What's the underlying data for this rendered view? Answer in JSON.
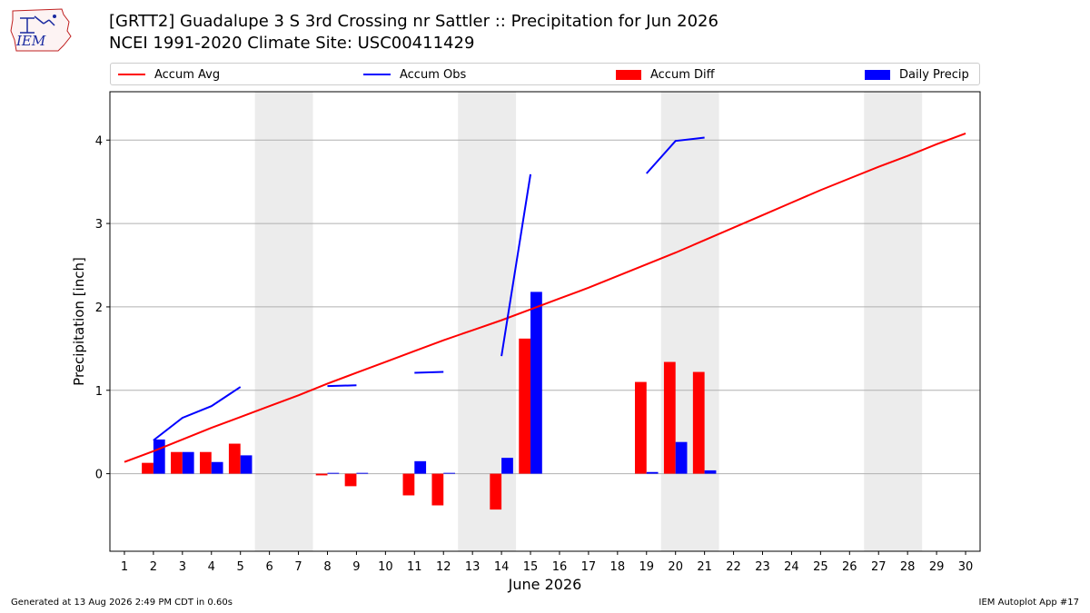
{
  "header": {
    "title_line1": "[GRTT2] Guadalupe 3 S 3rd Crossing nr Sattler :: Precipitation for Jun 2026",
    "title_line2": "NCEI 1991-2020 Climate Site: USC00411429"
  },
  "logo": {
    "text": "IEM",
    "icon": "iem-iowa-logo"
  },
  "footer": {
    "generated": "Generated at 13 Aug 2026 2:49 PM CDT in 0.60s",
    "app": "IEM Autoplot App #17"
  },
  "colors": {
    "accum_avg": "#ff0000",
    "accum_obs": "#0000ff",
    "accum_diff": "#ff0000",
    "daily_precip": "#0000ff",
    "weekend_shade": "#ececec",
    "grid": "#b0b0b0"
  },
  "chart_data": {
    "type": "bar",
    "title": "[GRTT2] Guadalupe 3 S 3rd Crossing nr Sattler :: Precipitation for Jun 2026",
    "subtitle": "NCEI 1991-2020 Climate Site: USC00411429",
    "xlabel": "June 2026",
    "ylabel": "Precipitation [inch]",
    "xlim": [
      0.5,
      30.5
    ],
    "ylim": [
      -0.93,
      4.58
    ],
    "x_ticks": [
      1,
      2,
      3,
      4,
      5,
      6,
      7,
      8,
      9,
      10,
      11,
      12,
      13,
      14,
      15,
      16,
      17,
      18,
      19,
      20,
      21,
      22,
      23,
      24,
      25,
      26,
      27,
      28,
      29,
      30
    ],
    "y_ticks": [
      0,
      1,
      2,
      3,
      4
    ],
    "grid": "horizontal",
    "legend_position": "top",
    "weekend_days": [
      6,
      7,
      13,
      14,
      20,
      21,
      27,
      28
    ],
    "legend": [
      "Accum Avg",
      "Accum Obs",
      "Accum Diff",
      "Daily Precip"
    ],
    "series": [
      {
        "name": "Accum Avg",
        "kind": "line",
        "x": [
          1,
          2,
          3,
          4,
          5,
          6,
          7,
          8,
          9,
          10,
          11,
          12,
          13,
          14,
          15,
          16,
          17,
          18,
          19,
          20,
          21,
          22,
          23,
          24,
          25,
          26,
          27,
          28,
          29,
          30
        ],
        "values": [
          0.14,
          0.27,
          0.41,
          0.55,
          0.68,
          0.81,
          0.94,
          1.08,
          1.21,
          1.34,
          1.47,
          1.6,
          1.72,
          1.84,
          1.97,
          2.1,
          2.23,
          2.37,
          2.51,
          2.65,
          2.8,
          2.95,
          3.1,
          3.25,
          3.4,
          3.54,
          3.68,
          3.81,
          3.95,
          4.08
        ]
      },
      {
        "name": "Accum Obs",
        "kind": "line",
        "segments": [
          {
            "x": [
              2,
              3,
              4,
              5
            ],
            "values": [
              0.4,
              0.67,
              0.81,
              1.04
            ]
          },
          {
            "x": [
              8,
              9
            ],
            "values": [
              1.05,
              1.06
            ]
          },
          {
            "x": [
              11,
              12
            ],
            "values": [
              1.21,
              1.22
            ]
          },
          {
            "x": [
              14,
              15
            ],
            "values": [
              1.41,
              3.59
            ]
          },
          {
            "x": [
              19,
              20,
              21
            ],
            "values": [
              3.6,
              3.99,
              4.03
            ]
          }
        ]
      },
      {
        "name": "Accum Diff",
        "kind": "bar",
        "x": [
          2,
          3,
          4,
          5,
          8,
          9,
          11,
          12,
          14,
          15,
          19,
          20,
          21
        ],
        "values": [
          0.13,
          0.26,
          0.26,
          0.36,
          -0.02,
          -0.15,
          -0.26,
          -0.38,
          -0.43,
          1.62,
          1.1,
          1.34,
          1.22
        ]
      },
      {
        "name": "Daily Precip",
        "kind": "bar",
        "x": [
          2,
          3,
          4,
          5,
          8,
          9,
          11,
          12,
          14,
          15,
          19,
          20,
          21
        ],
        "values": [
          0.41,
          0.26,
          0.14,
          0.22,
          0.01,
          0.01,
          0.15,
          0.01,
          0.19,
          2.18,
          0.02,
          0.38,
          0.04
        ]
      }
    ]
  }
}
